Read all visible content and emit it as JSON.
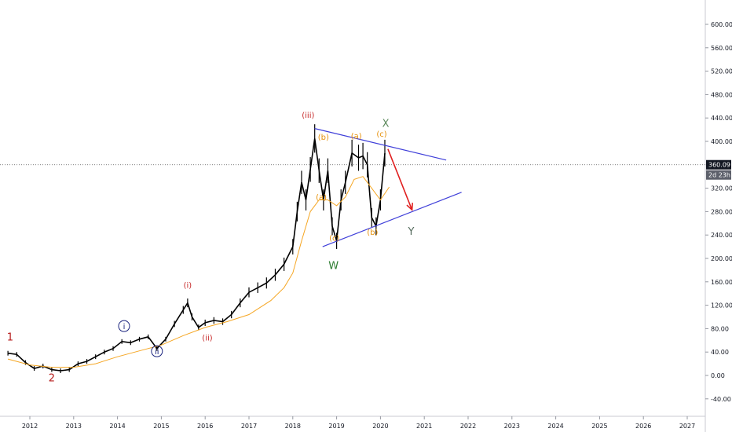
{
  "chart_data": {
    "type": "line",
    "title": "",
    "scale": "linear",
    "grid": false,
    "ylim": [
      -60,
      660
    ],
    "xlim": [
      2011.5,
      2027.9
    ],
    "x_tick_labels": [
      "2012",
      "2013",
      "2014",
      "2015",
      "2016",
      "2017",
      "2018",
      "2019",
      "2020",
      "2021",
      "2022",
      "2023",
      "2024",
      "2025",
      "2026",
      "2027"
    ],
    "x_ticks": [
      2012,
      2013,
      2014,
      2015,
      2016,
      2017,
      2018,
      2019,
      2020,
      2021,
      2022,
      2023,
      2024,
      2025,
      2026,
      2027
    ],
    "y_tick_labels": [
      "600.00",
      "560.00",
      "520.00",
      "480.00",
      "440.00",
      "400.00",
      "320.00",
      "280.00",
      "240.00",
      "200.00",
      "160.00",
      "120.00",
      "80.00",
      "40.00",
      "0.00",
      "-40.00"
    ],
    "y_ticks": [
      600,
      560,
      520,
      480,
      440,
      400,
      320,
      280,
      240,
      200,
      160,
      120,
      80,
      40,
      0,
      -40
    ],
    "current_price": {
      "value": 360.09,
      "label": "360.09",
      "countdown": "2d 23h",
      "color": "#131722"
    },
    "series": [
      {
        "style": "candles",
        "color": "#000000",
        "x": [
          2011.5,
          2011.7,
          2011.9,
          2012.1,
          2012.3,
          2012.5,
          2012.7,
          2012.9,
          2013.1,
          2013.3,
          2013.5,
          2013.7,
          2013.9,
          2014.1,
          2014.3,
          2014.5,
          2014.7,
          2014.9,
          2015.1,
          2015.3,
          2015.5,
          2015.6,
          2015.7,
          2015.85,
          2016.0,
          2016.2,
          2016.4,
          2016.6,
          2016.8,
          2017.0,
          2017.2,
          2017.4,
          2017.6,
          2017.8,
          2018.0,
          2018.1,
          2018.2,
          2018.3,
          2018.4,
          2018.5,
          2018.6,
          2018.7,
          2018.8,
          2018.9,
          2019.0,
          2019.1,
          2019.2,
          2019.35,
          2019.5,
          2019.6,
          2019.7,
          2019.8,
          2019.9,
          2020.0,
          2020.1
        ],
        "y": [
          38,
          36,
          22,
          12,
          16,
          10,
          8,
          10,
          20,
          24,
          32,
          40,
          46,
          58,
          56,
          62,
          66,
          46,
          62,
          88,
          112,
          124,
          100,
          82,
          90,
          94,
          92,
          104,
          124,
          142,
          150,
          158,
          172,
          190,
          220,
          280,
          330,
          300,
          352,
          405,
          350,
          300,
          350,
          255,
          230,
          300,
          330,
          380,
          372,
          375,
          360,
          270,
          255,
          300,
          380
        ]
      },
      {
        "style": "line",
        "color": "#F5A623",
        "x": [
          2011.5,
          2012.0,
          2012.5,
          2013.0,
          2013.5,
          2014.0,
          2014.5,
          2015.0,
          2015.5,
          2016.0,
          2016.5,
          2017.0,
          2017.5,
          2017.8,
          2018.0,
          2018.2,
          2018.4,
          2018.6,
          2018.8,
          2019.0,
          2019.2,
          2019.4,
          2019.6,
          2019.8,
          2020.0,
          2020.2
        ],
        "y": [
          28,
          18,
          14,
          14,
          20,
          32,
          42,
          52,
          68,
          82,
          92,
          104,
          128,
          150,
          175,
          230,
          280,
          300,
          300,
          290,
          305,
          335,
          340,
          320,
          300,
          322
        ]
      }
    ],
    "trendlines": [
      {
        "name": "upper",
        "x": [
          2018.5,
          2021.5
        ],
        "y": [
          422,
          368
        ],
        "color": "#3f3fd9"
      },
      {
        "name": "lower",
        "x": [
          2018.68,
          2021.85
        ],
        "y": [
          220,
          313
        ],
        "color": "#3f3fd9"
      }
    ],
    "arrow": {
      "x": [
        2020.17,
        2020.72
      ],
      "y": [
        387,
        283
      ],
      "color": "#e02020"
    },
    "annotations": [
      {
        "text": "1",
        "x": 2011.55,
        "y": 60,
        "color": "#b71c1c",
        "size": "big"
      },
      {
        "text": "2",
        "x": 2012.5,
        "y": -10,
        "color": "#b71c1c",
        "size": "big"
      },
      {
        "text": "i",
        "x": 2014.15,
        "y": 79,
        "color": "#1a237e",
        "style": "circle"
      },
      {
        "text": "ii",
        "x": 2014.9,
        "y": 36,
        "color": "#1a237e",
        "style": "circle"
      },
      {
        "text": "(i)",
        "x": 2015.6,
        "y": 150,
        "color": "#c62828"
      },
      {
        "text": "(ii)",
        "x": 2016.05,
        "y": 60,
        "color": "#c62828"
      },
      {
        "text": "(iii)",
        "x": 2018.35,
        "y": 440,
        "color": "#c62828"
      },
      {
        "text": "(b)",
        "x": 2018.7,
        "y": 403,
        "color": "#e6910a"
      },
      {
        "text": "(a)",
        "x": 2018.65,
        "y": 300,
        "color": "#e6910a"
      },
      {
        "text": "(c)",
        "x": 2018.95,
        "y": 230,
        "color": "#e6910a"
      },
      {
        "text": "W",
        "x": 2018.93,
        "y": 182,
        "color": "#2e7d32",
        "size": "big"
      },
      {
        "text": "(a)",
        "x": 2019.45,
        "y": 405,
        "color": "#e6910a"
      },
      {
        "text": "(b)",
        "x": 2019.82,
        "y": 240,
        "color": "#e6910a"
      },
      {
        "text": "(c)",
        "x": 2020.03,
        "y": 408,
        "color": "#e6910a"
      },
      {
        "text": "X",
        "x": 2020.12,
        "y": 425,
        "color": "#5d8a5d",
        "size": "big"
      },
      {
        "text": "Y",
        "x": 2020.7,
        "y": 240,
        "color": "#556b5d",
        "size": "big"
      }
    ]
  }
}
